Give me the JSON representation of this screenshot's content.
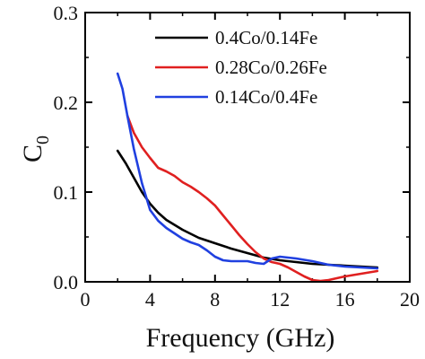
{
  "chart_data": {
    "type": "line",
    "title": "",
    "xlabel": "Frequency (GHz)",
    "ylabel_main": "C",
    "ylabel_sub": "0",
    "xlim": [
      0,
      20
    ],
    "ylim": [
      0,
      0.3
    ],
    "xticks": [
      0,
      4,
      8,
      12,
      16,
      20
    ],
    "xtick_labels": [
      "0",
      "4",
      "8",
      "12",
      "16",
      "20"
    ],
    "yticks": [
      0.0,
      0.1,
      0.2,
      0.3
    ],
    "ytick_labels": [
      "0.0",
      "0.1",
      "0.2",
      "0.3"
    ],
    "grid": false,
    "legend_position": "top-right",
    "series": [
      {
        "name": "0.4Co/0.14Fe",
        "color": "#000000",
        "points": [
          [
            2.0,
            0.146
          ],
          [
            2.5,
            0.132
          ],
          [
            3.0,
            0.116
          ],
          [
            3.5,
            0.1
          ],
          [
            4.0,
            0.087
          ],
          [
            4.5,
            0.077
          ],
          [
            5.0,
            0.069
          ],
          [
            6.0,
            0.058
          ],
          [
            7.0,
            0.049
          ],
          [
            8.0,
            0.043
          ],
          [
            9.0,
            0.037
          ],
          [
            10.0,
            0.032
          ],
          [
            11.0,
            0.027
          ],
          [
            12.0,
            0.024
          ],
          [
            13.0,
            0.022
          ],
          [
            14.0,
            0.02
          ],
          [
            15.0,
            0.019
          ],
          [
            16.0,
            0.018
          ],
          [
            17.0,
            0.017
          ],
          [
            18.0,
            0.016
          ]
        ]
      },
      {
        "name": "0.28Co/0.26Fe",
        "color": "#e02020",
        "points": [
          [
            2.6,
            0.185
          ],
          [
            3.0,
            0.166
          ],
          [
            3.5,
            0.15
          ],
          [
            4.0,
            0.138
          ],
          [
            4.5,
            0.127
          ],
          [
            5.0,
            0.123
          ],
          [
            5.5,
            0.118
          ],
          [
            6.0,
            0.111
          ],
          [
            6.5,
            0.106
          ],
          [
            7.0,
            0.1
          ],
          [
            7.5,
            0.093
          ],
          [
            8.0,
            0.085
          ],
          [
            8.5,
            0.074
          ],
          [
            9.0,
            0.063
          ],
          [
            9.5,
            0.052
          ],
          [
            10.0,
            0.042
          ],
          [
            10.5,
            0.033
          ],
          [
            11.0,
            0.026
          ],
          [
            11.5,
            0.022
          ],
          [
            12.0,
            0.02
          ],
          [
            12.5,
            0.016
          ],
          [
            13.0,
            0.011
          ],
          [
            13.5,
            0.006
          ],
          [
            14.0,
            0.002
          ],
          [
            14.5,
            0.001
          ],
          [
            15.0,
            0.002
          ],
          [
            16.0,
            0.006
          ],
          [
            17.0,
            0.009
          ],
          [
            18.0,
            0.012
          ]
        ]
      },
      {
        "name": "0.14Co/0.4Fe",
        "color": "#2040e0",
        "points": [
          [
            2.0,
            0.232
          ],
          [
            2.3,
            0.215
          ],
          [
            2.6,
            0.185
          ],
          [
            3.0,
            0.148
          ],
          [
            3.5,
            0.11
          ],
          [
            4.0,
            0.08
          ],
          [
            4.5,
            0.068
          ],
          [
            5.0,
            0.06
          ],
          [
            5.5,
            0.054
          ],
          [
            6.0,
            0.048
          ],
          [
            6.5,
            0.044
          ],
          [
            7.0,
            0.041
          ],
          [
            7.5,
            0.035
          ],
          [
            8.0,
            0.028
          ],
          [
            8.5,
            0.024
          ],
          [
            9.0,
            0.023
          ],
          [
            10.0,
            0.023
          ],
          [
            10.5,
            0.021
          ],
          [
            11.0,
            0.02
          ],
          [
            11.5,
            0.026
          ],
          [
            12.0,
            0.028
          ],
          [
            12.5,
            0.027
          ],
          [
            13.0,
            0.026
          ],
          [
            14.0,
            0.023
          ],
          [
            15.0,
            0.019
          ],
          [
            16.0,
            0.017
          ],
          [
            17.0,
            0.016
          ],
          [
            18.0,
            0.015
          ]
        ]
      }
    ]
  }
}
